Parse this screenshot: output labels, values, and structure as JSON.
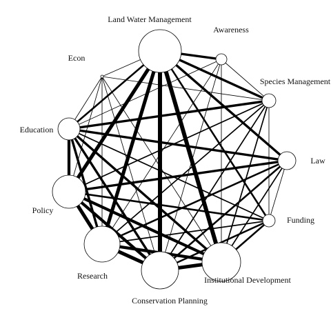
{
  "diagram": {
    "type": "network",
    "colors": {
      "edge": "#000000",
      "node_fill": "#ffffff",
      "node_stroke": "#000000",
      "label": "#111111"
    },
    "nodes": [
      {
        "id": "land-water-management",
        "label": "Land Water Management",
        "size": 5
      },
      {
        "id": "awareness",
        "label": "Awareness",
        "size": 1.5
      },
      {
        "id": "species-management",
        "label": "Species Management",
        "size": 1.8
      },
      {
        "id": "law",
        "label": "Law",
        "size": 2.4
      },
      {
        "id": "funding",
        "label": "Funding",
        "size": 1.7
      },
      {
        "id": "institutional-development",
        "label": "Institutional Development",
        "size": 5
      },
      {
        "id": "conservation-planning",
        "label": "Conservation Planning",
        "size": 5
      },
      {
        "id": "research",
        "label": "Research",
        "size": 4.8
      },
      {
        "id": "policy",
        "label": "Policy",
        "size": 4.4
      },
      {
        "id": "education",
        "label": "Education",
        "size": 3
      },
      {
        "id": "econ",
        "label": "Econ",
        "size": 0.5
      }
    ],
    "edges": [
      {
        "source": "land-water-management",
        "target": "awareness",
        "weight": 4
      },
      {
        "source": "land-water-management",
        "target": "species-management",
        "weight": 4
      },
      {
        "source": "land-water-management",
        "target": "law",
        "weight": 4
      },
      {
        "source": "land-water-management",
        "target": "funding",
        "weight": 3
      },
      {
        "source": "land-water-management",
        "target": "institutional-development",
        "weight": 7
      },
      {
        "source": "land-water-management",
        "target": "conservation-planning",
        "weight": 7
      },
      {
        "source": "land-water-management",
        "target": "research",
        "weight": 6
      },
      {
        "source": "land-water-management",
        "target": "policy",
        "weight": 6
      },
      {
        "source": "land-water-management",
        "target": "education",
        "weight": 3
      },
      {
        "source": "land-water-management",
        "target": "econ",
        "weight": 1
      },
      {
        "source": "awareness",
        "target": "species-management",
        "weight": 1
      },
      {
        "source": "awareness",
        "target": "institutional-development",
        "weight": 1
      },
      {
        "source": "awareness",
        "target": "conservation-planning",
        "weight": 1
      },
      {
        "source": "awareness",
        "target": "research",
        "weight": 1
      },
      {
        "source": "awareness",
        "target": "education",
        "weight": 1
      },
      {
        "source": "species-management",
        "target": "funding",
        "weight": 1
      },
      {
        "source": "species-management",
        "target": "institutional-development",
        "weight": 2
      },
      {
        "source": "species-management",
        "target": "conservation-planning",
        "weight": 2
      },
      {
        "source": "species-management",
        "target": "research",
        "weight": 2
      },
      {
        "source": "species-management",
        "target": "policy",
        "weight": 2
      },
      {
        "source": "species-management",
        "target": "education",
        "weight": 4
      },
      {
        "source": "species-management",
        "target": "econ",
        "weight": 1
      },
      {
        "source": "law",
        "target": "funding",
        "weight": 1
      },
      {
        "source": "law",
        "target": "institutional-development",
        "weight": 2
      },
      {
        "source": "law",
        "target": "conservation-planning",
        "weight": 3
      },
      {
        "source": "law",
        "target": "research",
        "weight": 3
      },
      {
        "source": "law",
        "target": "policy",
        "weight": 4
      },
      {
        "source": "law",
        "target": "education",
        "weight": 4
      },
      {
        "source": "funding",
        "target": "institutional-development",
        "weight": 3
      },
      {
        "source": "funding",
        "target": "conservation-planning",
        "weight": 3
      },
      {
        "source": "funding",
        "target": "research",
        "weight": 2
      },
      {
        "source": "funding",
        "target": "policy",
        "weight": 3
      },
      {
        "source": "funding",
        "target": "education",
        "weight": 2
      },
      {
        "source": "institutional-development",
        "target": "conservation-planning",
        "weight": 6
      },
      {
        "source": "institutional-development",
        "target": "research",
        "weight": 5
      },
      {
        "source": "institutional-development",
        "target": "policy",
        "weight": 5
      },
      {
        "source": "institutional-development",
        "target": "education",
        "weight": 4
      },
      {
        "source": "institutional-development",
        "target": "econ",
        "weight": 1
      },
      {
        "source": "conservation-planning",
        "target": "research",
        "weight": 6
      },
      {
        "source": "conservation-planning",
        "target": "policy",
        "weight": 5
      },
      {
        "source": "conservation-planning",
        "target": "education",
        "weight": 4
      },
      {
        "source": "conservation-planning",
        "target": "econ",
        "weight": 1
      },
      {
        "source": "research",
        "target": "policy",
        "weight": 6
      },
      {
        "source": "research",
        "target": "education",
        "weight": 4
      },
      {
        "source": "research",
        "target": "econ",
        "weight": 1
      },
      {
        "source": "policy",
        "target": "education",
        "weight": 5
      },
      {
        "source": "policy",
        "target": "econ",
        "weight": 1
      },
      {
        "source": "education",
        "target": "econ",
        "weight": 1
      }
    ]
  }
}
